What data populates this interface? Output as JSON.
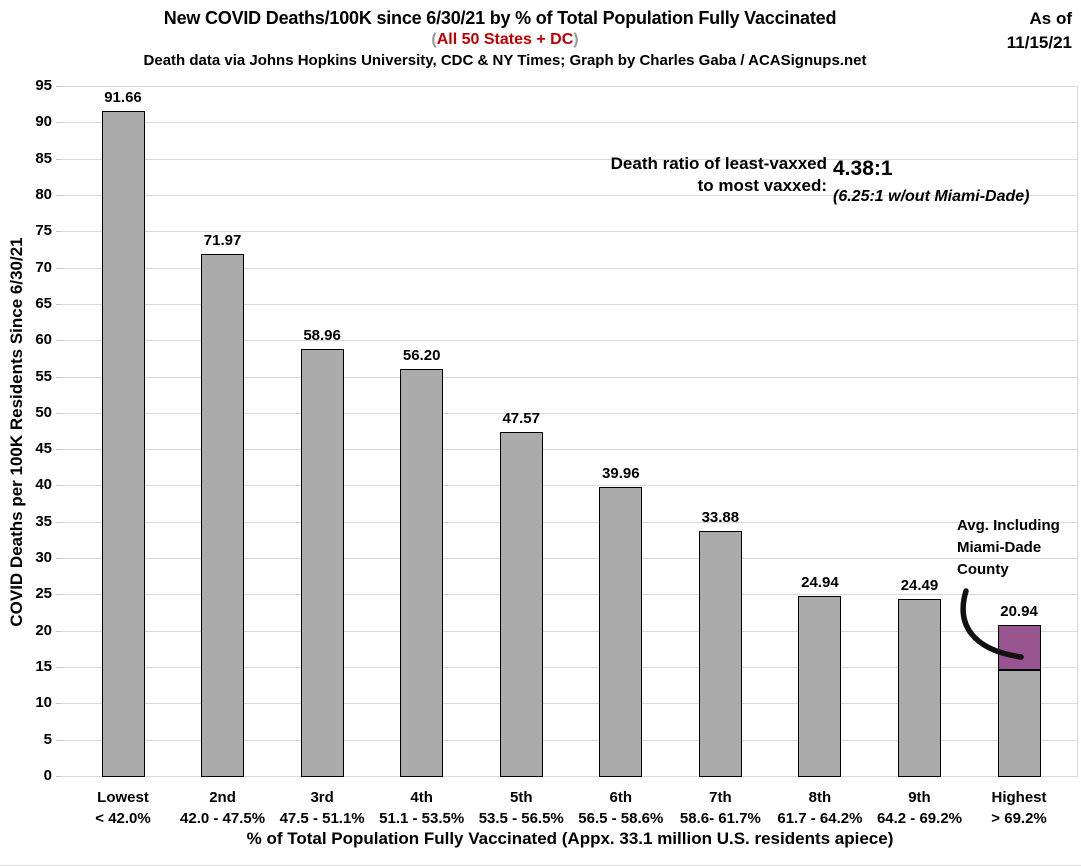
{
  "header": {
    "title": "New COVID Deaths/100K since 6/30/21 by % of Total Population Fully Vaccinated",
    "subtitle_open": "(",
    "subtitle_text": "All 50 States + DC",
    "subtitle_close": ")",
    "source": "Death data via Johns Hopkins University, CDC & NY Times; Graph by Charles Gaba / ACASignups.net",
    "as_of_label": "As of",
    "as_of_date": "11/15/21"
  },
  "annotations": {
    "ratio_line1": "Death ratio of least-vaxxed",
    "ratio_line2": "to most vaxxed:",
    "ratio_value": "4.38:1",
    "ratio_note": "(6.25:1 w/out Miami-Dade)",
    "miami_line1": "Avg. Including",
    "miami_line2": "Miami-Dade",
    "miami_line3": "County"
  },
  "chart_data": {
    "type": "bar",
    "title": "New COVID Deaths/100K since 6/30/21 by % of Total Population Fully Vaccinated",
    "xlabel": "% of Total Population Fully Vaccinated (Appx. 33.1 million U.S. residents apiece)",
    "ylabel": "COVID Deaths per 100K Residents Since 6/30/21",
    "ylim": [
      0,
      95
    ],
    "ytick_step": 5,
    "grid": true,
    "legend_position": "none",
    "categories": [
      "Lowest",
      "2nd",
      "3rd",
      "4th",
      "5th",
      "6th",
      "7th",
      "8th",
      "9th",
      "Highest"
    ],
    "category_ranges": [
      "< 42.0%",
      "42.0 - 47.5%",
      "47.5 - 51.1%",
      "51.1 - 53.5%",
      "53.5 - 56.5%",
      "56.5 - 58.6%",
      "58.6- 61.7%",
      "61.7 - 64.2%",
      "64.2 - 69.2%",
      "> 69.2%"
    ],
    "values": [
      91.66,
      71.97,
      58.96,
      56.2,
      47.57,
      39.96,
      33.88,
      24.94,
      24.49,
      20.94
    ],
    "value_labels": [
      "91.66",
      "71.97",
      "58.96",
      "56.20",
      "47.57",
      "39.96",
      "33.88",
      "24.94",
      "24.49",
      "20.94"
    ],
    "highest_bar_segments": [
      {
        "value": 14.67,
        "color": "#ababab"
      },
      {
        "value": 6.27,
        "color": "#98548f"
      }
    ],
    "colors": {
      "bar_fill": "#ababab",
      "bar_border": "#000000",
      "highlight_fill": "#98548f",
      "gridline": "#d9d9d9",
      "tick_stub": "#c9c9c9",
      "subtitle_red": "#c00000",
      "subtitle_paren": "#999999",
      "text": "#000000",
      "arrow": "#111111"
    }
  }
}
